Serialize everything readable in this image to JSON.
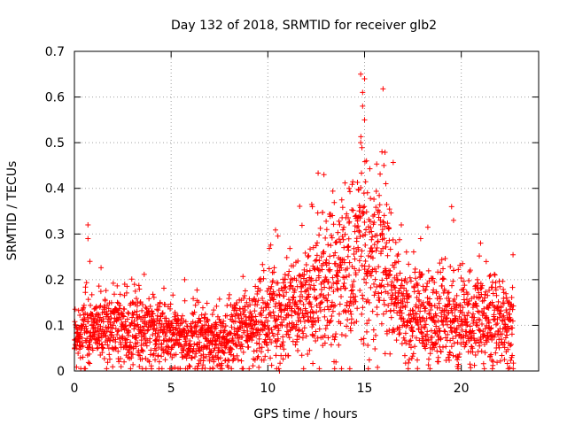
{
  "chart_data": {
    "type": "scatter",
    "title": "Day 132 of 2018, SRMTID for receiver glb2",
    "xlabel": "GPS time / hours",
    "ylabel": "SRMTID / TECUs",
    "xlim": [
      0,
      24
    ],
    "ylim": [
      0,
      0.7
    ],
    "xticks": [
      "0",
      "5",
      "10",
      "15",
      "20"
    ],
    "yticks": [
      "0",
      "0.1",
      "0.2",
      "0.3",
      "0.4",
      "0.5",
      "0.6",
      "0.7"
    ],
    "grid": true,
    "marker": "+",
    "color": "#ff0000",
    "x_range_observed": [
      0,
      22.7
    ],
    "baseline_trend": [
      {
        "x": 0.0,
        "y": 0.07
      },
      {
        "x": 1.0,
        "y": 0.09
      },
      {
        "x": 2.0,
        "y": 0.085
      },
      {
        "x": 3.0,
        "y": 0.1
      },
      {
        "x": 4.0,
        "y": 0.075
      },
      {
        "x": 5.0,
        "y": 0.075
      },
      {
        "x": 6.0,
        "y": 0.07
      },
      {
        "x": 7.0,
        "y": 0.07
      },
      {
        "x": 8.0,
        "y": 0.075
      },
      {
        "x": 9.0,
        "y": 0.09
      },
      {
        "x": 10.0,
        "y": 0.12
      },
      {
        "x": 11.0,
        "y": 0.13
      },
      {
        "x": 12.0,
        "y": 0.15
      },
      {
        "x": 13.0,
        "y": 0.19
      },
      {
        "x": 14.0,
        "y": 0.22
      },
      {
        "x": 15.0,
        "y": 0.25
      },
      {
        "x": 16.0,
        "y": 0.23
      },
      {
        "x": 17.0,
        "y": 0.12
      },
      {
        "x": 18.0,
        "y": 0.12
      },
      {
        "x": 19.0,
        "y": 0.12
      },
      {
        "x": 20.0,
        "y": 0.11
      },
      {
        "x": 21.0,
        "y": 0.11
      },
      {
        "x": 22.0,
        "y": 0.1
      },
      {
        "x": 22.7,
        "y": 0.09
      }
    ],
    "notable_points": [
      {
        "x": 0.7,
        "y": 0.32
      },
      {
        "x": 0.7,
        "y": 0.29
      },
      {
        "x": 0.8,
        "y": 0.24
      },
      {
        "x": 2.6,
        "y": 0.19
      },
      {
        "x": 5.7,
        "y": 0.2
      },
      {
        "x": 10.6,
        "y": 0.0
      },
      {
        "x": 12.3,
        "y": 0.36
      },
      {
        "x": 12.9,
        "y": 0.43
      },
      {
        "x": 14.2,
        "y": 0.4
      },
      {
        "x": 14.8,
        "y": 0.65
      },
      {
        "x": 15.0,
        "y": 0.64
      },
      {
        "x": 14.9,
        "y": 0.61
      },
      {
        "x": 14.9,
        "y": 0.58
      },
      {
        "x": 15.0,
        "y": 0.55
      },
      {
        "x": 14.8,
        "y": 0.5
      },
      {
        "x": 15.1,
        "y": 0.46
      },
      {
        "x": 15.9,
        "y": 0.48
      },
      {
        "x": 16.0,
        "y": 0.45
      },
      {
        "x": 16.1,
        "y": 0.41
      },
      {
        "x": 16.9,
        "y": 0.32
      },
      {
        "x": 17.9,
        "y": 0.29
      },
      {
        "x": 19.5,
        "y": 0.36
      },
      {
        "x": 19.6,
        "y": 0.33
      },
      {
        "x": 19.6,
        "y": 0.22
      },
      {
        "x": 21.0,
        "y": 0.28
      },
      {
        "x": 19.8,
        "y": 0.01
      }
    ]
  }
}
